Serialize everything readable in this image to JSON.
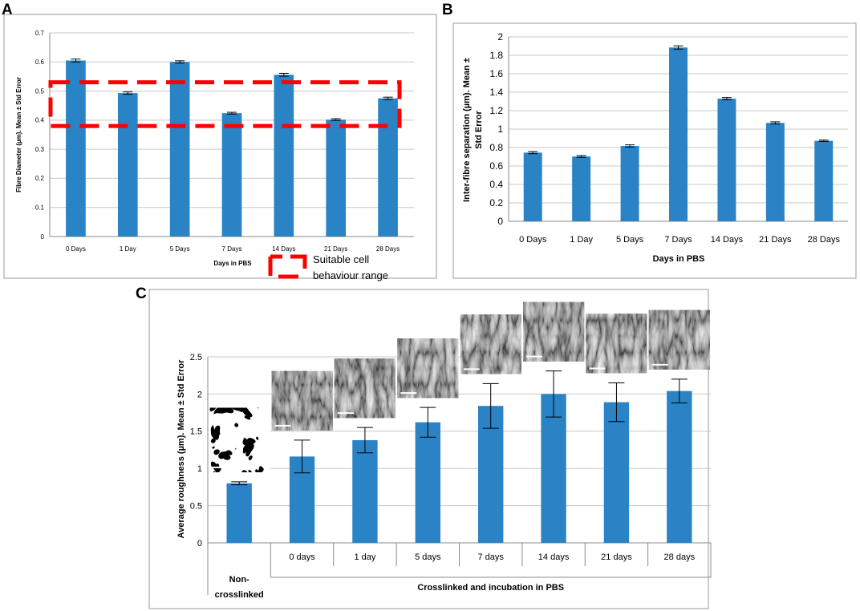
{
  "panel_labels": {
    "a": "A",
    "b": "B",
    "c": "C"
  },
  "colors": {
    "bar": "#2A83C5",
    "grid": "#C8C8C8",
    "axis": "#888888",
    "frame": "#999999",
    "range": "#FF0000",
    "text": "#000000"
  },
  "legend": {
    "line1": "Suitable cell",
    "line2": "behaviour range"
  },
  "chart_data": [
    {
      "id": "A",
      "type": "bar",
      "title": "",
      "categories": [
        "0 Days",
        "1 Day",
        "5 Days",
        "7 Days",
        "14 Days",
        "21 Days",
        "28 Days"
      ],
      "values": [
        0.605,
        0.493,
        0.6,
        0.424,
        0.556,
        0.402,
        0.475
      ],
      "errors": [
        0.005,
        0.004,
        0.004,
        0.003,
        0.005,
        0.003,
        0.004
      ],
      "xlabel": "Days in PBS",
      "ylabel": "Fibre Diameter (µm). Mean ± Std Error",
      "ylim": [
        0,
        0.7
      ],
      "yticks": [
        "0",
        "0.1",
        "0.2",
        "0.3",
        "0.4",
        "0.5",
        "0.6",
        "0.7"
      ],
      "grid": true,
      "highlight_range": [
        0.38,
        0.53
      ],
      "legend": "Suitable cell behaviour range"
    },
    {
      "id": "B",
      "type": "bar",
      "title": "",
      "categories": [
        "0 Days",
        "1 Day",
        "5 Days",
        "7 Days",
        "14 Days",
        "21 Days",
        "28 Days"
      ],
      "values": [
        0.745,
        0.703,
        0.817,
        1.885,
        1.33,
        1.067,
        0.873
      ],
      "errors": [
        0.012,
        0.01,
        0.012,
        0.018,
        0.012,
        0.012,
        0.008
      ],
      "xlabel": "Days in PBS",
      "ylabel_line1": "Inter-fibre separation (µm). Mean ±",
      "ylabel_line2": "Std Error",
      "ylim": [
        0,
        2
      ],
      "yticks": [
        "0",
        "0.2",
        "0.4",
        "0.6",
        "0.8",
        "1",
        "1.2",
        "1.4",
        "1.6",
        "1.8",
        "2"
      ],
      "grid": true
    },
    {
      "id": "C",
      "type": "bar",
      "title": "",
      "categories": [
        "Non-crosslinked",
        "0 days",
        "1 day",
        "5 days",
        "7 days",
        "14 days",
        "21 days",
        "28 days"
      ],
      "category_first_line1": "Non-",
      "category_first_line2": "crosslinked",
      "values": [
        0.8,
        1.16,
        1.38,
        1.62,
        1.84,
        2.0,
        1.89,
        2.04
      ],
      "errors": [
        0.02,
        0.22,
        0.17,
        0.2,
        0.3,
        0.31,
        0.26,
        0.16
      ],
      "group_label": "Crosslinked and incubation in PBS",
      "ylabel": "Average roughness (µm). Mean ± Std Error",
      "ylim": [
        0,
        2.5
      ],
      "yticks": [
        "0",
        "0.5",
        "1",
        "1.5",
        "2",
        "2.5"
      ],
      "grid": true,
      "thumbnails": [
        "non-crosslinked-sem",
        "sem-0-days",
        "sem-1-day",
        "sem-5-days",
        "sem-7-days",
        "sem-14-days",
        "sem-21-days",
        "sem-28-days"
      ]
    }
  ]
}
